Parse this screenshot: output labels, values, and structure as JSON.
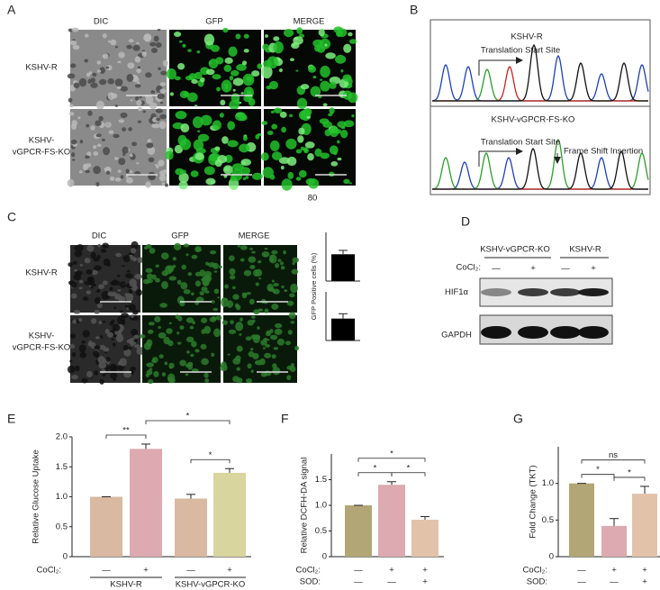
{
  "panels": {
    "A": {
      "letter": "A",
      "columns": [
        "DIC",
        "GFP",
        "MERGE"
      ],
      "rows": [
        [
          "KSHV-R"
        ],
        [
          "KSHV-",
          "vGPCR-FS-KO"
        ]
      ]
    },
    "B": {
      "letter": "B",
      "top": {
        "label": "KSHV-R",
        "site": "Translation Start Site"
      },
      "bottom": {
        "label": "KSHV-vGPCR-FS-KO",
        "site": "Translation Start Site",
        "insertion": "Frame Shift Insertion"
      }
    },
    "C": {
      "letter": "C",
      "columns": [
        "DIC",
        "GFP",
        "MERGE"
      ],
      "rows": [
        [
          "KSHV-R"
        ],
        [
          "KSHV-",
          "vGPCR-FS-KO"
        ]
      ],
      "note": 80
    },
    "D": {
      "letter": "D",
      "groups": [
        "KSHV-vGPCR-KO",
        "KSHV-R"
      ],
      "treatment": "CoCl₂:",
      "lanes": [
        "—",
        "+",
        "—",
        "+"
      ],
      "bands": [
        "HIF1α",
        "GAPDH"
      ]
    },
    "E": {
      "letter": "E"
    },
    "F": {
      "letter": "F"
    },
    "G": {
      "letter": "G"
    }
  },
  "chart_data": [
    {
      "type": "bar",
      "ylabel": "GFP Positive cells (%)",
      "values": [
        55
      ],
      "errors": [
        8
      ],
      "color": "#000000",
      "ylim": [
        0,
        100
      ]
    },
    {
      "type": "bar",
      "values": [
        45
      ],
      "errors": [
        10
      ],
      "color": "#000000",
      "ylim": [
        0,
        100
      ]
    },
    {
      "type": "bar",
      "ylabel": "Relative Glucose Uptake",
      "values": [
        1,
        1.8,
        0.97,
        1.4
      ],
      "errors": [
        0,
        0.08,
        0.07,
        0.07
      ],
      "colors": [
        "#d9b9a1",
        "#dcaab0",
        "#d9b9a1",
        "#d8d59e"
      ],
      "ylim": [
        0,
        2
      ],
      "yticks": [
        0,
        0.5,
        {
          "value": 1,
          "label": "1.0"
        },
        1.5,
        {
          "value": 2,
          "label": "2.0"
        }
      ],
      "rows": [
        {
          "label": "CoCl₂:",
          "marks": [
            "—",
            "+",
            "—",
            "+"
          ]
        }
      ],
      "groups": [
        {
          "label": "KSHV-R",
          "bars": [
            0,
            1
          ]
        },
        {
          "label": "KSHV-vGPCR-KO",
          "bars": [
            2,
            3
          ]
        }
      ],
      "significance": [
        {
          "label": "**",
          "bars": [
            0,
            1
          ]
        },
        {
          "label": "*",
          "bars": [
            2,
            3
          ]
        },
        {
          "label": "*",
          "bars": [
            1,
            3
          ]
        }
      ]
    },
    {
      "type": "bar",
      "ylabel": "Relative DCFH-DA signal",
      "values": [
        1,
        1.4,
        0.72
      ],
      "errors": [
        0,
        0.06,
        0.06
      ],
      "colors": [
        "#b2a676",
        "#dcaab0",
        "#e2c3aa"
      ],
      "ylim": [
        0,
        2
      ],
      "yticks": [
        0,
        0.5,
        {
          "value": 1,
          "label": "1.0"
        },
        1.5
      ],
      "rows": [
        {
          "label": "CoCl₂:",
          "marks": [
            "—",
            "+",
            "+"
          ]
        },
        {
          "label": "SOD:",
          "marks": [
            "—",
            "—",
            "+"
          ]
        }
      ],
      "significance": [
        {
          "label": "*",
          "bars": [
            0,
            1
          ]
        },
        {
          "label": "*",
          "bars": [
            1,
            2
          ]
        },
        {
          "label": "*",
          "bars": [
            0,
            2
          ]
        }
      ]
    },
    {
      "type": "bar",
      "ylabel": "Fold Change (TKT)",
      "values": [
        1,
        0.42,
        0.86
      ],
      "errors": [
        0,
        0.1,
        0.1
      ],
      "colors": [
        "#b2a676",
        "#dcaab0",
        "#e2c3aa"
      ],
      "ylim": [
        0,
        1.5
      ],
      "yticks": [
        0,
        0.5,
        {
          "value": 1,
          "label": "1.0"
        }
      ],
      "rows": [
        {
          "label": "CoCl₂:",
          "marks": [
            "—",
            "+",
            "+"
          ]
        },
        {
          "label": "SOD:",
          "marks": [
            "—",
            "—",
            "+"
          ]
        }
      ],
      "significance": [
        {
          "label": "*",
          "bars": [
            0,
            1
          ]
        },
        {
          "label": "*",
          "bars": [
            1,
            2
          ]
        },
        {
          "label": "ns",
          "bars": [
            0,
            2
          ]
        }
      ]
    }
  ]
}
